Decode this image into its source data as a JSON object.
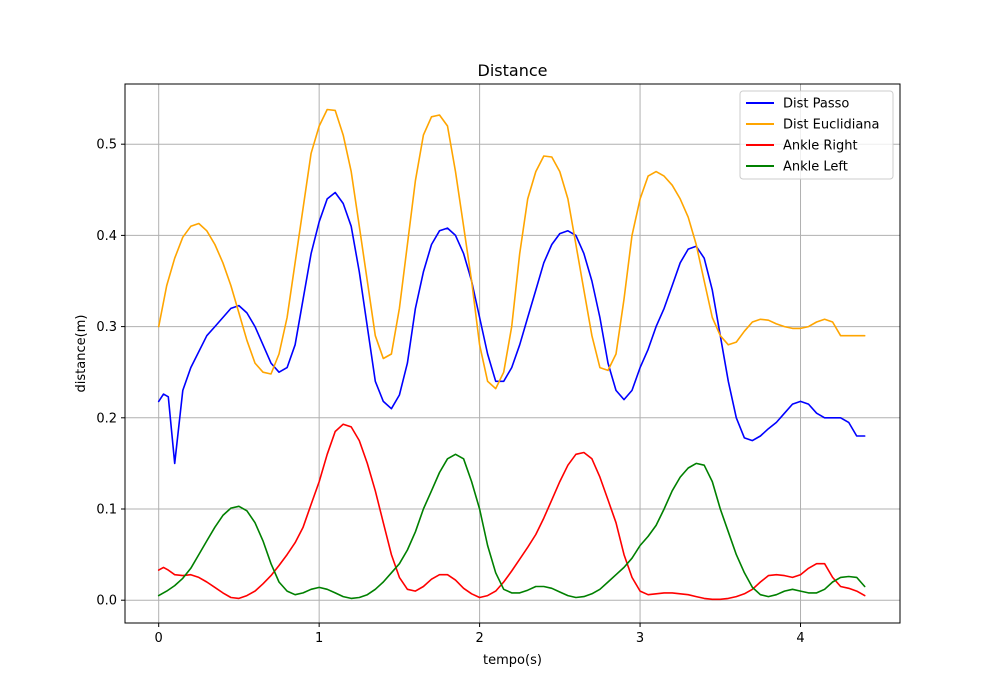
{
  "chart_data": {
    "type": "line",
    "title": "Distance",
    "xlabel": "tempo(s)",
    "ylabel": "distance(m)",
    "xlim": [
      -0.21,
      4.62
    ],
    "ylim": [
      -0.025,
      0.566
    ],
    "xticks": [
      0,
      1,
      2,
      3,
      4
    ],
    "xtick_labels": [
      "0",
      "1",
      "2",
      "3",
      "4"
    ],
    "yticks": [
      0.0,
      0.1,
      0.2,
      0.3,
      0.4,
      0.5
    ],
    "ytick_labels": [
      "0.0",
      "0.1",
      "0.2",
      "0.3",
      "0.4",
      "0.5"
    ],
    "grid": true,
    "legend_position": "upper right",
    "series": [
      {
        "name": "Dist Passo",
        "color": "#0000ff",
        "x": [
          0.0,
          0.03,
          0.06,
          0.1,
          0.15,
          0.2,
          0.3,
          0.35,
          0.4,
          0.45,
          0.5,
          0.55,
          0.6,
          0.65,
          0.7,
          0.75,
          0.8,
          0.85,
          0.9,
          0.95,
          1.0,
          1.05,
          1.1,
          1.15,
          1.2,
          1.25,
          1.3,
          1.35,
          1.4,
          1.45,
          1.5,
          1.55,
          1.6,
          1.65,
          1.7,
          1.75,
          1.8,
          1.85,
          1.9,
          1.95,
          2.0,
          2.05,
          2.1,
          2.15,
          2.2,
          2.25,
          2.3,
          2.35,
          2.4,
          2.45,
          2.5,
          2.55,
          2.6,
          2.65,
          2.7,
          2.75,
          2.8,
          2.85,
          2.9,
          2.95,
          3.0,
          3.05,
          3.1,
          3.15,
          3.2,
          3.25,
          3.3,
          3.35,
          3.4,
          3.45,
          3.5,
          3.55,
          3.6,
          3.65,
          3.7,
          3.75,
          3.8,
          3.85,
          3.9,
          3.95,
          4.0,
          4.05,
          4.1,
          4.15,
          4.2,
          4.25,
          4.3,
          4.35,
          4.4
        ],
        "y": [
          0.218,
          0.226,
          0.223,
          0.15,
          0.23,
          0.255,
          0.29,
          0.3,
          0.31,
          0.32,
          0.323,
          0.315,
          0.3,
          0.28,
          0.26,
          0.25,
          0.255,
          0.28,
          0.33,
          0.38,
          0.415,
          0.44,
          0.447,
          0.435,
          0.41,
          0.36,
          0.3,
          0.24,
          0.218,
          0.21,
          0.225,
          0.26,
          0.32,
          0.36,
          0.39,
          0.405,
          0.408,
          0.4,
          0.38,
          0.35,
          0.31,
          0.27,
          0.24,
          0.24,
          0.255,
          0.28,
          0.31,
          0.34,
          0.37,
          0.39,
          0.402,
          0.405,
          0.4,
          0.38,
          0.35,
          0.31,
          0.26,
          0.23,
          0.22,
          0.23,
          0.255,
          0.275,
          0.3,
          0.32,
          0.345,
          0.37,
          0.385,
          0.388,
          0.375,
          0.34,
          0.29,
          0.24,
          0.2,
          0.178,
          0.175,
          0.18,
          0.188,
          0.195,
          0.205,
          0.215,
          0.218,
          0.215,
          0.205,
          0.2,
          0.2,
          0.2,
          0.195,
          0.18,
          0.18
        ]
      },
      {
        "name": "Dist Euclidiana",
        "color": "#ffa500",
        "x": [
          0.0,
          0.05,
          0.1,
          0.15,
          0.2,
          0.25,
          0.3,
          0.35,
          0.4,
          0.45,
          0.5,
          0.55,
          0.6,
          0.65,
          0.7,
          0.75,
          0.8,
          0.85,
          0.9,
          0.95,
          1.0,
          1.05,
          1.1,
          1.15,
          1.2,
          1.25,
          1.3,
          1.35,
          1.4,
          1.45,
          1.5,
          1.55,
          1.6,
          1.65,
          1.7,
          1.75,
          1.8,
          1.85,
          1.9,
          1.95,
          2.0,
          2.05,
          2.1,
          2.15,
          2.2,
          2.25,
          2.3,
          2.35,
          2.4,
          2.45,
          2.5,
          2.55,
          2.6,
          2.65,
          2.7,
          2.75,
          2.8,
          2.85,
          2.9,
          2.95,
          3.0,
          3.05,
          3.1,
          3.15,
          3.2,
          3.25,
          3.3,
          3.35,
          3.4,
          3.45,
          3.5,
          3.55,
          3.6,
          3.65,
          3.7,
          3.75,
          3.8,
          3.85,
          3.9,
          3.95,
          4.0,
          4.05,
          4.1,
          4.15,
          4.2,
          4.25,
          4.3,
          4.35,
          4.4
        ],
        "y": [
          0.3,
          0.345,
          0.375,
          0.398,
          0.41,
          0.413,
          0.405,
          0.39,
          0.37,
          0.345,
          0.315,
          0.285,
          0.26,
          0.25,
          0.248,
          0.27,
          0.31,
          0.37,
          0.43,
          0.49,
          0.52,
          0.538,
          0.537,
          0.51,
          0.47,
          0.41,
          0.35,
          0.29,
          0.265,
          0.27,
          0.32,
          0.39,
          0.46,
          0.51,
          0.53,
          0.532,
          0.52,
          0.47,
          0.41,
          0.35,
          0.28,
          0.24,
          0.232,
          0.25,
          0.3,
          0.38,
          0.44,
          0.47,
          0.487,
          0.486,
          0.47,
          0.44,
          0.39,
          0.34,
          0.29,
          0.255,
          0.252,
          0.27,
          0.33,
          0.4,
          0.44,
          0.465,
          0.47,
          0.465,
          0.455,
          0.44,
          0.42,
          0.39,
          0.35,
          0.31,
          0.29,
          0.28,
          0.283,
          0.295,
          0.305,
          0.308,
          0.307,
          0.303,
          0.3,
          0.298,
          0.298,
          0.3,
          0.305,
          0.308,
          0.305,
          0.29,
          0.29,
          0.29,
          0.29
        ]
      },
      {
        "name": "Ankle Right",
        "color": "#ff0000",
        "x": [
          0.0,
          0.03,
          0.06,
          0.1,
          0.15,
          0.2,
          0.25,
          0.3,
          0.35,
          0.4,
          0.45,
          0.5,
          0.55,
          0.6,
          0.65,
          0.7,
          0.75,
          0.8,
          0.85,
          0.9,
          0.95,
          1.0,
          1.05,
          1.1,
          1.15,
          1.2,
          1.25,
          1.3,
          1.35,
          1.4,
          1.45,
          1.5,
          1.55,
          1.6,
          1.65,
          1.7,
          1.75,
          1.8,
          1.85,
          1.9,
          1.95,
          2.0,
          2.05,
          2.1,
          2.15,
          2.2,
          2.25,
          2.3,
          2.35,
          2.4,
          2.45,
          2.5,
          2.55,
          2.6,
          2.65,
          2.7,
          2.75,
          2.8,
          2.85,
          2.9,
          2.95,
          3.0,
          3.05,
          3.1,
          3.15,
          3.2,
          3.25,
          3.3,
          3.35,
          3.4,
          3.45,
          3.5,
          3.55,
          3.6,
          3.65,
          3.7,
          3.75,
          3.8,
          3.85,
          3.9,
          3.95,
          4.0,
          4.05,
          4.1,
          4.15,
          4.2,
          4.25,
          4.3,
          4.35,
          4.4
        ],
        "y": [
          0.033,
          0.036,
          0.033,
          0.028,
          0.027,
          0.028,
          0.025,
          0.02,
          0.014,
          0.008,
          0.003,
          0.002,
          0.005,
          0.01,
          0.018,
          0.027,
          0.038,
          0.05,
          0.063,
          0.08,
          0.105,
          0.13,
          0.16,
          0.185,
          0.193,
          0.19,
          0.175,
          0.15,
          0.12,
          0.085,
          0.05,
          0.025,
          0.012,
          0.01,
          0.015,
          0.023,
          0.028,
          0.028,
          0.022,
          0.013,
          0.007,
          0.003,
          0.005,
          0.01,
          0.02,
          0.032,
          0.045,
          0.058,
          0.072,
          0.09,
          0.11,
          0.13,
          0.148,
          0.16,
          0.162,
          0.155,
          0.135,
          0.11,
          0.085,
          0.05,
          0.025,
          0.01,
          0.006,
          0.007,
          0.008,
          0.008,
          0.007,
          0.006,
          0.004,
          0.002,
          0.001,
          0.001,
          0.002,
          0.004,
          0.007,
          0.012,
          0.02,
          0.027,
          0.028,
          0.027,
          0.025,
          0.028,
          0.035,
          0.04,
          0.04,
          0.025,
          0.015,
          0.013,
          0.01,
          0.005
        ]
      },
      {
        "name": "Ankle Left",
        "color": "#008000",
        "x": [
          0.0,
          0.05,
          0.1,
          0.15,
          0.2,
          0.25,
          0.3,
          0.35,
          0.4,
          0.45,
          0.5,
          0.55,
          0.6,
          0.65,
          0.7,
          0.75,
          0.8,
          0.85,
          0.9,
          0.95,
          1.0,
          1.05,
          1.1,
          1.15,
          1.2,
          1.25,
          1.3,
          1.35,
          1.4,
          1.45,
          1.5,
          1.55,
          1.6,
          1.65,
          1.7,
          1.75,
          1.8,
          1.85,
          1.9,
          1.95,
          2.0,
          2.05,
          2.1,
          2.15,
          2.2,
          2.25,
          2.3,
          2.35,
          2.4,
          2.45,
          2.5,
          2.55,
          2.6,
          2.65,
          2.7,
          2.75,
          2.8,
          2.85,
          2.9,
          2.95,
          3.0,
          3.05,
          3.1,
          3.15,
          3.2,
          3.25,
          3.3,
          3.35,
          3.4,
          3.45,
          3.5,
          3.55,
          3.6,
          3.65,
          3.7,
          3.75,
          3.8,
          3.85,
          3.9,
          3.95,
          4.0,
          4.05,
          4.1,
          4.15,
          4.2,
          4.25,
          4.3,
          4.35,
          4.4
        ],
        "y": [
          0.005,
          0.01,
          0.016,
          0.024,
          0.035,
          0.05,
          0.065,
          0.08,
          0.093,
          0.101,
          0.103,
          0.098,
          0.085,
          0.065,
          0.04,
          0.02,
          0.01,
          0.006,
          0.008,
          0.012,
          0.014,
          0.012,
          0.008,
          0.004,
          0.002,
          0.003,
          0.006,
          0.012,
          0.02,
          0.03,
          0.04,
          0.055,
          0.075,
          0.1,
          0.12,
          0.14,
          0.155,
          0.16,
          0.155,
          0.13,
          0.1,
          0.06,
          0.03,
          0.012,
          0.008,
          0.008,
          0.011,
          0.015,
          0.015,
          0.013,
          0.009,
          0.005,
          0.003,
          0.004,
          0.007,
          0.012,
          0.02,
          0.028,
          0.036,
          0.046,
          0.06,
          0.07,
          0.082,
          0.1,
          0.12,
          0.135,
          0.145,
          0.15,
          0.148,
          0.13,
          0.1,
          0.075,
          0.05,
          0.03,
          0.014,
          0.006,
          0.004,
          0.006,
          0.01,
          0.012,
          0.01,
          0.008,
          0.008,
          0.012,
          0.02,
          0.025,
          0.026,
          0.025,
          0.015
        ]
      }
    ]
  }
}
